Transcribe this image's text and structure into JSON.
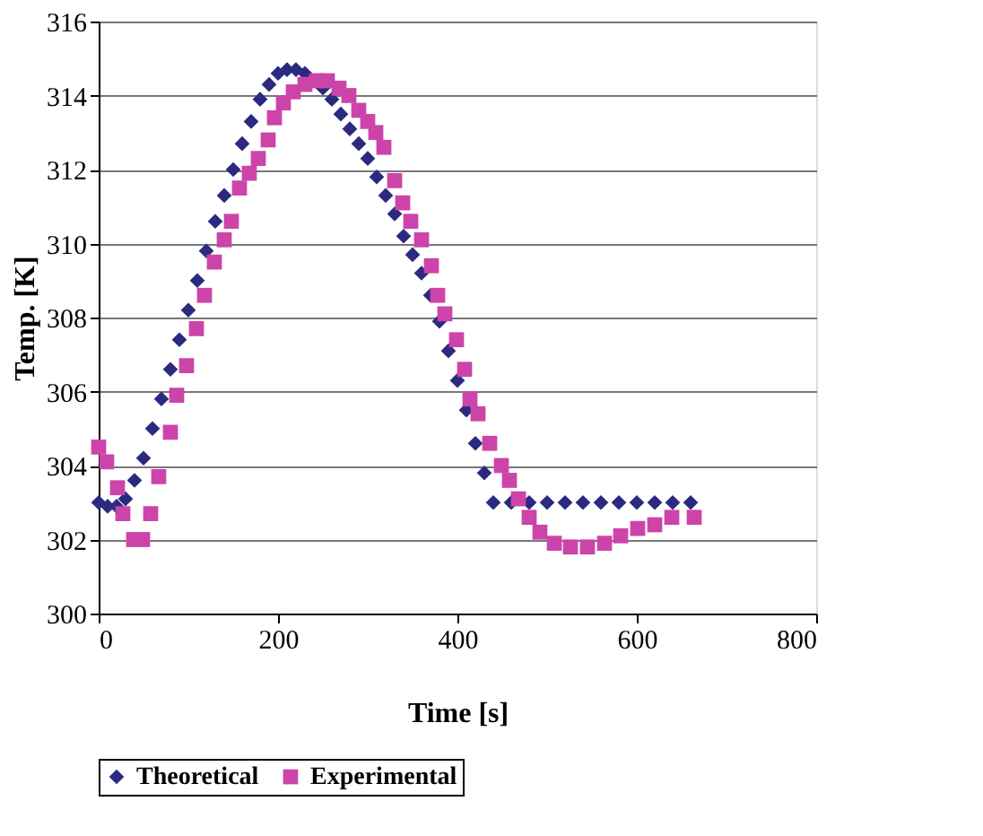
{
  "chart_data": {
    "type": "scatter",
    "xlabel": "Time [s]",
    "ylabel": "Temp. [K]",
    "xlim": [
      0,
      800
    ],
    "xticks": [
      0,
      200,
      400,
      600,
      800
    ],
    "ylim": [
      300,
      316
    ],
    "yticks": [
      300,
      302,
      304,
      306,
      308,
      310,
      312,
      314,
      316
    ],
    "grid": "y",
    "legend": "bottom",
    "series": [
      {
        "name": "Theoretical",
        "color": "#2b2a80",
        "marker": "diamond",
        "x": [
          0,
          10,
          20,
          30,
          40,
          50,
          60,
          70,
          80,
          90,
          100,
          110,
          120,
          130,
          140,
          150,
          160,
          170,
          180,
          190,
          200,
          210,
          220,
          230,
          240,
          250,
          260,
          270,
          280,
          290,
          300,
          310,
          320,
          330,
          340,
          350,
          360,
          370,
          380,
          390,
          400,
          410,
          420,
          430,
          440,
          460,
          480,
          500,
          520,
          540,
          560,
          580,
          600,
          620,
          640,
          660
        ],
        "values": [
          303.0,
          302.9,
          302.9,
          303.1,
          303.6,
          304.2,
          305.0,
          305.8,
          306.6,
          307.4,
          308.2,
          309.0,
          309.8,
          310.6,
          311.3,
          312.0,
          312.7,
          313.3,
          313.9,
          314.3,
          314.6,
          314.7,
          314.7,
          314.6,
          null,
          314.2,
          313.9,
          313.5,
          313.1,
          312.7,
          312.3,
          311.8,
          311.3,
          310.8,
          310.2,
          309.7,
          309.2,
          308.6,
          307.9,
          307.1,
          306.3,
          305.5,
          304.6,
          303.8,
          303.0,
          303.0,
          303.0,
          303.0,
          303.0,
          303.0,
          303.0,
          303.0,
          303.0,
          303.0,
          303.0,
          303.0
        ]
      },
      {
        "name": "Experimental",
        "color": "#cc44aa",
        "marker": "square",
        "x": [
          0,
          9,
          21,
          27,
          39,
          49,
          58,
          67,
          80,
          87,
          98,
          109,
          118,
          129,
          140,
          148,
          157,
          168,
          178,
          189,
          196,
          206,
          217,
          230,
          243,
          255,
          268,
          279,
          290,
          300,
          309,
          318,
          330,
          339,
          348,
          360,
          371,
          378,
          386,
          399,
          408,
          414,
          423,
          436,
          449,
          458,
          468,
          480,
          492,
          508,
          526,
          545,
          564,
          582,
          601,
          620,
          639,
          664
        ],
        "values": [
          304.5,
          304.1,
          303.4,
          302.7,
          302.0,
          302.0,
          302.7,
          303.7,
          304.9,
          305.9,
          306.7,
          307.7,
          308.6,
          309.5,
          310.1,
          310.6,
          311.5,
          311.9,
          312.3,
          312.8,
          313.4,
          313.8,
          314.1,
          314.3,
          314.4,
          314.4,
          314.2,
          314.0,
          313.6,
          313.3,
          313.0,
          312.6,
          311.7,
          311.1,
          310.6,
          310.1,
          309.4,
          308.6,
          308.1,
          307.4,
          306.6,
          305.8,
          305.4,
          304.6,
          304.0,
          303.6,
          303.1,
          302.6,
          302.2,
          301.9,
          301.8,
          301.8,
          301.9,
          302.1,
          302.3,
          302.4,
          302.6,
          302.6
        ]
      }
    ]
  }
}
